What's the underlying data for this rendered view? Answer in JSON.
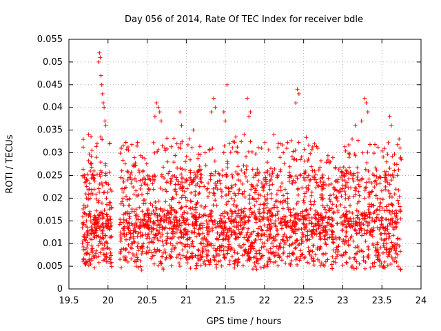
{
  "chart_data": {
    "type": "scatter",
    "title": "Day 056 of 2014, Rate Of TEC Index for receiver bdle",
    "xlabel": "GPS time / hours",
    "ylabel": "ROTI / TECUs",
    "xlim": [
      19.5,
      24
    ],
    "ylim": [
      0,
      0.055
    ],
    "xticks": [
      19.5,
      20,
      20.5,
      21,
      21.5,
      22,
      22.5,
      23,
      23.5,
      24
    ],
    "xtick_labels": [
      "19.5",
      "20",
      "20.5",
      "21",
      "21.5",
      "22",
      "22.5",
      "23",
      "23.5",
      "24"
    ],
    "yticks": [
      0,
      0.005,
      0.01,
      0.015,
      0.02,
      0.025,
      0.03,
      0.035,
      0.04,
      0.045,
      0.05,
      0.055
    ],
    "ytick_labels": [
      "0",
      "0.005",
      "0.01",
      "0.015",
      "0.02",
      "0.025",
      "0.03",
      "0.035",
      "0.04",
      "0.045",
      "0.05",
      "0.055"
    ],
    "grid": true,
    "marker": "+",
    "color": "#ff0000",
    "x_range_data": [
      19.67,
      23.75
    ],
    "data_gap": [
      20.05,
      20.15
    ],
    "series": [
      {
        "name": "ROTI",
        "points": [
          [
            19.68,
            0.025
          ],
          [
            19.7,
            0.012
          ],
          [
            19.71,
            0.018
          ],
          [
            19.73,
            0.009
          ],
          [
            19.75,
            0.034
          ],
          [
            19.76,
            0.022
          ],
          [
            19.78,
            0.015
          ],
          [
            19.8,
            0.008
          ],
          [
            19.82,
            0.026
          ],
          [
            19.84,
            0.013
          ],
          [
            19.86,
            0.032
          ],
          [
            19.88,
            0.05
          ],
          [
            19.89,
            0.052
          ],
          [
            19.9,
            0.051
          ],
          [
            19.91,
            0.047
          ],
          [
            19.92,
            0.045
          ],
          [
            19.93,
            0.043
          ],
          [
            19.94,
            0.041
          ],
          [
            19.95,
            0.04
          ],
          [
            19.96,
            0.037
          ],
          [
            19.97,
            0.036
          ],
          [
            19.98,
            0.02
          ],
          [
            19.99,
            0.01
          ],
          [
            20.0,
            0.006
          ],
          [
            20.01,
            0.015
          ],
          [
            20.03,
            0.022
          ],
          [
            20.17,
            0.031
          ],
          [
            20.19,
            0.02
          ],
          [
            20.21,
            0.012
          ],
          [
            20.23,
            0.007
          ],
          [
            20.25,
            0.024
          ],
          [
            20.28,
            0.016
          ],
          [
            20.3,
            0.01
          ],
          [
            20.33,
            0.027
          ],
          [
            20.36,
            0.005
          ],
          [
            20.4,
            0.018
          ],
          [
            20.44,
            0.029
          ],
          [
            20.48,
            0.012
          ],
          [
            20.52,
            0.022
          ],
          [
            20.56,
            0.008
          ],
          [
            20.6,
            0.038
          ],
          [
            20.62,
            0.041
          ],
          [
            20.64,
            0.04
          ],
          [
            20.66,
            0.039
          ],
          [
            20.68,
            0.037
          ],
          [
            20.72,
            0.015
          ],
          [
            20.76,
            0.028
          ],
          [
            20.8,
            0.01
          ],
          [
            20.84,
            0.02
          ],
          [
            20.88,
            0.032
          ],
          [
            20.92,
            0.039
          ],
          [
            20.94,
            0.036
          ],
          [
            20.97,
            0.013
          ],
          [
            21.0,
            0.024
          ],
          [
            21.05,
            0.007
          ],
          [
            21.09,
            0.035
          ],
          [
            21.12,
            0.018
          ],
          [
            21.16,
            0.026
          ],
          [
            21.2,
            0.011
          ],
          [
            21.24,
            0.03
          ],
          [
            21.28,
            0.016
          ],
          [
            21.32,
            0.039
          ],
          [
            21.35,
            0.042
          ],
          [
            21.37,
            0.04
          ],
          [
            21.4,
            0.022
          ],
          [
            21.44,
            0.012
          ],
          [
            21.48,
            0.039
          ],
          [
            21.5,
            0.037
          ],
          [
            21.52,
            0.045
          ],
          [
            21.55,
            0.032
          ],
          [
            21.58,
            0.02
          ],
          [
            21.62,
            0.008
          ],
          [
            21.66,
            0.027
          ],
          [
            21.7,
            0.014
          ],
          [
            21.74,
            0.034
          ],
          [
            21.78,
            0.042
          ],
          [
            21.8,
            0.038
          ],
          [
            21.82,
            0.039
          ],
          [
            21.85,
            0.01
          ],
          [
            21.88,
            0.005
          ],
          [
            21.92,
            0.02
          ],
          [
            21.96,
            0.031
          ],
          [
            22.0,
            0.012
          ],
          [
            22.04,
            0.026
          ],
          [
            22.08,
            0.008
          ],
          [
            22.12,
            0.034
          ],
          [
            22.16,
            0.018
          ],
          [
            22.2,
            0.032
          ],
          [
            22.24,
            0.03
          ],
          [
            22.28,
            0.014
          ],
          [
            22.32,
            0.025
          ],
          [
            22.36,
            0.01
          ],
          [
            22.4,
            0.041
          ],
          [
            22.42,
            0.044
          ],
          [
            22.44,
            0.043
          ],
          [
            22.48,
            0.016
          ],
          [
            22.52,
            0.007
          ],
          [
            22.56,
            0.022
          ],
          [
            22.6,
            0.012
          ],
          [
            22.64,
            0.026
          ],
          [
            22.68,
            0.031
          ],
          [
            22.72,
            0.009
          ],
          [
            22.76,
            0.018
          ],
          [
            22.8,
            0.014
          ],
          [
            22.84,
            0.028
          ],
          [
            22.88,
            0.006
          ],
          [
            22.92,
            0.02
          ],
          [
            22.96,
            0.011
          ],
          [
            23.0,
            0.024
          ],
          [
            23.04,
            0.008
          ],
          [
            23.08,
            0.029
          ],
          [
            23.12,
            0.033
          ],
          [
            23.16,
            0.036
          ],
          [
            23.2,
            0.017
          ],
          [
            23.24,
            0.037
          ],
          [
            23.28,
            0.042
          ],
          [
            23.3,
            0.041
          ],
          [
            23.32,
            0.039
          ],
          [
            23.36,
            0.012
          ],
          [
            23.4,
            0.025
          ],
          [
            23.44,
            0.007
          ],
          [
            23.48,
            0.019
          ],
          [
            23.52,
            0.005
          ],
          [
            23.56,
            0.028
          ],
          [
            23.6,
            0.038
          ],
          [
            23.62,
            0.036
          ],
          [
            23.64,
            0.015
          ],
          [
            23.66,
            0.009
          ],
          [
            23.68,
            0.022
          ],
          [
            23.7,
            0.011
          ],
          [
            23.72,
            0.033
          ],
          [
            23.74,
            0.029
          ]
        ]
      }
    ]
  }
}
